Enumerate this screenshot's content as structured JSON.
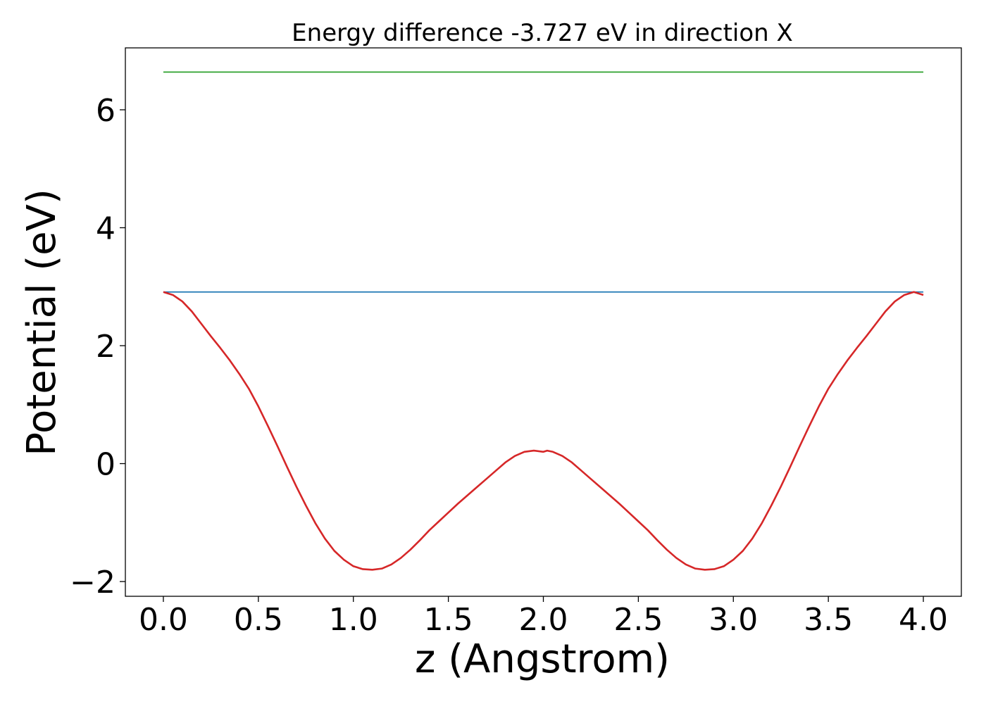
{
  "chart_data": {
    "type": "line",
    "title": "Energy difference -3.727 eV in direction X",
    "xlabel": "z (Angstrom)",
    "ylabel": "Potential (eV)",
    "xlim": [
      -0.2,
      4.2
    ],
    "ylim": [
      -2.25,
      7.05
    ],
    "x_ticks": [
      0.0,
      0.5,
      1.0,
      1.5,
      2.0,
      2.5,
      3.0,
      3.5,
      4.0
    ],
    "x_tick_labels": [
      "0.0",
      "0.5",
      "1.0",
      "1.5",
      "2.0",
      "2.5",
      "3.0",
      "3.5",
      "4.0"
    ],
    "y_ticks": [
      -2,
      0,
      2,
      4,
      6
    ],
    "y_tick_labels": [
      "−2",
      "0",
      "2",
      "4",
      "6"
    ],
    "grid": false,
    "legend": "none",
    "series": [
      {
        "color": "#2ca02c",
        "style": "horizontal",
        "x": [
          0.0,
          4.0
        ],
        "y": [
          6.64,
          6.64
        ]
      },
      {
        "color": "#1f77b4",
        "style": "horizontal",
        "x": [
          0.0,
          4.0
        ],
        "y": [
          2.91,
          2.91
        ]
      },
      {
        "color": "#d62728",
        "style": "curve",
        "x": [
          0.0,
          0.05,
          0.1,
          0.15,
          0.2,
          0.25,
          0.3,
          0.35,
          0.4,
          0.45,
          0.5,
          0.55,
          0.6,
          0.65,
          0.7,
          0.75,
          0.8,
          0.85,
          0.9,
          0.95,
          1.0,
          1.05,
          1.1,
          1.15,
          1.2,
          1.25,
          1.3,
          1.35,
          1.4,
          1.45,
          1.5,
          1.55,
          1.6,
          1.65,
          1.7,
          1.75,
          1.8,
          1.85,
          1.9,
          1.95,
          2.0,
          2.02,
          2.05,
          2.1,
          2.15,
          2.2,
          2.25,
          2.3,
          2.35,
          2.4,
          2.45,
          2.5,
          2.55,
          2.6,
          2.65,
          2.7,
          2.75,
          2.8,
          2.85,
          2.9,
          2.95,
          3.0,
          3.05,
          3.1,
          3.15,
          3.2,
          3.25,
          3.3,
          3.35,
          3.4,
          3.45,
          3.5,
          3.55,
          3.6,
          3.65,
          3.7,
          3.75,
          3.8,
          3.85,
          3.9,
          3.95,
          4.0
        ],
        "y": [
          2.91,
          2.86,
          2.75,
          2.58,
          2.37,
          2.16,
          1.96,
          1.75,
          1.52,
          1.27,
          0.97,
          0.64,
          0.3,
          -0.05,
          -0.39,
          -0.71,
          -1.01,
          -1.27,
          -1.48,
          -1.63,
          -1.74,
          -1.79,
          -1.8,
          -1.78,
          -1.71,
          -1.6,
          -1.46,
          -1.3,
          -1.13,
          -0.98,
          -0.83,
          -0.68,
          -0.54,
          -0.4,
          -0.26,
          -0.12,
          0.02,
          0.13,
          0.2,
          0.22,
          0.2,
          0.22,
          0.2,
          0.13,
          0.02,
          -0.12,
          -0.26,
          -0.4,
          -0.54,
          -0.68,
          -0.83,
          -0.98,
          -1.13,
          -1.3,
          -1.46,
          -1.6,
          -1.71,
          -1.78,
          -1.8,
          -1.79,
          -1.74,
          -1.63,
          -1.48,
          -1.27,
          -1.01,
          -0.71,
          -0.39,
          -0.05,
          0.3,
          0.64,
          0.97,
          1.27,
          1.52,
          1.75,
          1.96,
          2.16,
          2.37,
          2.58,
          2.75,
          2.86,
          2.91,
          2.86
        ]
      }
    ]
  }
}
